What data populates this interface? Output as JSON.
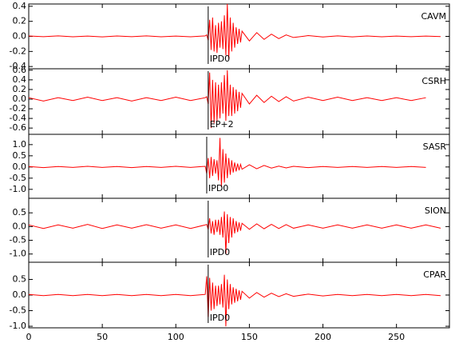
{
  "chart_data": [
    {
      "type": "line",
      "title": "CAVM",
      "color": "#ff0000",
      "pick": {
        "x": 122,
        "label": "IPD0"
      },
      "xlim": [
        0,
        286
      ],
      "ylim": [
        -0.43,
        0.43
      ],
      "yticks": [
        -0.4,
        -0.2,
        {
          "value": 0,
          "label": "0.0"
        },
        0.2,
        0.4
      ],
      "x": [
        0,
        10,
        20,
        30,
        40,
        50,
        60,
        70,
        80,
        90,
        100,
        110,
        120,
        121,
        122,
        123,
        124,
        125,
        126,
        127,
        128,
        129,
        130,
        131,
        132,
        133,
        134,
        135,
        136,
        137,
        138,
        139,
        140,
        141,
        142,
        143,
        144,
        145,
        150,
        155,
        160,
        165,
        170,
        175,
        180,
        190,
        200,
        210,
        220,
        230,
        240,
        250,
        260,
        270,
        280
      ],
      "values": [
        0.005,
        -0.004,
        0.006,
        -0.005,
        0.004,
        -0.006,
        0.005,
        -0.004,
        0.006,
        -0.005,
        0.004,
        -0.005,
        0.006,
        0.02,
        -0.05,
        0.22,
        -0.18,
        0.25,
        -0.2,
        0.15,
        -0.22,
        0.18,
        -0.15,
        0.2,
        -0.17,
        0.28,
        -0.25,
        0.43,
        -0.3,
        0.25,
        -0.2,
        0.18,
        -0.15,
        0.12,
        -0.1,
        0.1,
        -0.08,
        0.07,
        -0.06,
        0.05,
        -0.04,
        0.03,
        -0.03,
        0.02,
        -0.015,
        0.01,
        -0.008,
        0.007,
        -0.006,
        0.005,
        -0.005,
        0.004,
        -0.004,
        0.004,
        -0.003
      ]
    },
    {
      "type": "line",
      "title": "CSRH",
      "color": "#ff0000",
      "pick": {
        "x": 122,
        "label": "EP+2"
      },
      "xlim": [
        0,
        286
      ],
      "ylim": [
        -0.73,
        0.63
      ],
      "yticks": [
        -0.6,
        -0.4,
        -0.2,
        {
          "value": 0,
          "label": "0.0"
        },
        0.2,
        0.4,
        0.6
      ],
      "x": [
        0,
        10,
        20,
        30,
        40,
        50,
        60,
        70,
        80,
        90,
        100,
        110,
        120,
        121,
        122,
        123,
        124,
        125,
        126,
        127,
        128,
        129,
        130,
        131,
        132,
        133,
        134,
        135,
        136,
        137,
        138,
        139,
        140,
        141,
        142,
        143,
        144,
        145,
        150,
        155,
        160,
        165,
        170,
        175,
        180,
        190,
        200,
        210,
        220,
        230,
        240,
        250,
        260,
        270
      ],
      "values": [
        0.03,
        -0.04,
        0.03,
        -0.03,
        0.04,
        -0.03,
        0.03,
        -0.04,
        0.03,
        -0.03,
        0.04,
        -0.03,
        0.03,
        0.05,
        -0.1,
        0.55,
        -0.6,
        0.4,
        -0.5,
        0.35,
        -0.45,
        0.3,
        -0.4,
        0.35,
        -0.3,
        0.5,
        -0.45,
        0.6,
        -0.35,
        0.3,
        -0.35,
        0.25,
        -0.3,
        0.2,
        -0.25,
        0.15,
        -0.18,
        0.12,
        -0.1,
        0.08,
        -0.07,
        0.06,
        -0.05,
        0.05,
        -0.04,
        0.04,
        -0.03,
        0.04,
        -0.03,
        0.03,
        -0.03,
        0.03,
        -0.03,
        0.03
      ]
    },
    {
      "type": "line",
      "title": "SASR",
      "color": "#ff0000",
      "pick": {
        "x": 121,
        "label": "IPD0"
      },
      "xlim": [
        0,
        286
      ],
      "ylim": [
        -1.4,
        1.46
      ],
      "yticks": [
        {
          "value": -1,
          "label": "-1.0"
        },
        -0.5,
        {
          "value": 0,
          "label": "0.0"
        },
        0.5,
        {
          "value": 1,
          "label": "1.0"
        }
      ],
      "x": [
        0,
        10,
        20,
        30,
        40,
        50,
        60,
        70,
        80,
        90,
        100,
        110,
        120,
        121,
        122,
        123,
        124,
        125,
        126,
        127,
        128,
        129,
        130,
        131,
        132,
        133,
        134,
        135,
        136,
        137,
        138,
        139,
        140,
        141,
        142,
        143,
        144,
        145,
        150,
        155,
        160,
        165,
        170,
        175,
        180,
        190,
        200,
        210,
        220,
        230,
        240,
        250,
        260,
        270
      ],
      "values": [
        0.02,
        -0.03,
        0.02,
        -0.02,
        0.03,
        -0.02,
        0.02,
        -0.03,
        0.02,
        -0.02,
        0.03,
        -0.02,
        0.03,
        -0.3,
        0.4,
        -0.5,
        0.45,
        -0.4,
        0.35,
        -0.3,
        0.3,
        -0.6,
        1.3,
        -0.9,
        0.8,
        -0.7,
        0.6,
        -0.5,
        0.4,
        -0.35,
        0.3,
        -0.25,
        0.2,
        -0.2,
        0.15,
        -0.15,
        0.12,
        -0.1,
        0.1,
        -0.08,
        0.07,
        -0.05,
        0.04,
        -0.04,
        0.03,
        -0.03,
        0.02,
        -0.02,
        0.02,
        -0.02,
        0.02,
        -0.02,
        0.02,
        -0.02
      ]
    },
    {
      "type": "line",
      "title": "SION",
      "color": "#ff0000",
      "pick": {
        "x": 122,
        "label": "IPD0"
      },
      "xlim": [
        0,
        286
      ],
      "ylim": [
        -1.3,
        1.03
      ],
      "yticks": [
        {
          "value": -1,
          "label": "-1.0"
        },
        -0.5,
        {
          "value": 0,
          "label": "0.0"
        },
        0.5
      ],
      "x": [
        0,
        10,
        20,
        30,
        40,
        50,
        60,
        70,
        80,
        90,
        100,
        110,
        120,
        121,
        122,
        123,
        124,
        125,
        126,
        127,
        128,
        129,
        130,
        131,
        132,
        133,
        134,
        135,
        136,
        137,
        138,
        139,
        140,
        141,
        142,
        143,
        144,
        145,
        150,
        155,
        160,
        165,
        170,
        175,
        180,
        190,
        200,
        210,
        220,
        230,
        240,
        250,
        260,
        270,
        280
      ],
      "values": [
        0.06,
        -0.07,
        0.06,
        -0.06,
        0.08,
        -0.07,
        0.06,
        -0.06,
        0.07,
        -0.06,
        0.06,
        -0.07,
        0.06,
        0.08,
        -0.1,
        0.3,
        -0.25,
        0.2,
        -0.3,
        0.25,
        -0.2,
        0.25,
        -0.3,
        0.35,
        -0.4,
        0.55,
        -1.0,
        0.45,
        -0.6,
        0.35,
        -0.4,
        0.3,
        -0.25,
        0.2,
        -0.2,
        0.15,
        -0.15,
        0.12,
        -0.1,
        0.1,
        -0.08,
        0.08,
        -0.07,
        0.07,
        -0.06,
        0.06,
        -0.06,
        0.06,
        -0.06,
        0.06,
        -0.06,
        0.06,
        -0.06,
        0.06,
        -0.06
      ]
    },
    {
      "type": "line",
      "title": "CPAR",
      "color": "#ff0000",
      "pick": {
        "x": 122,
        "label": "IPD0"
      },
      "xlim": [
        0,
        286
      ],
      "ylim": [
        -1.05,
        1.05
      ],
      "yticks": [
        {
          "value": -1,
          "label": "-1.0"
        },
        -0.5,
        {
          "value": 0,
          "label": "0.0"
        },
        0.5
      ],
      "xticks": [
        0,
        50,
        100,
        150,
        200,
        250
      ],
      "x": [
        0,
        10,
        20,
        30,
        40,
        50,
        60,
        70,
        80,
        90,
        100,
        110,
        120,
        121,
        122,
        123,
        124,
        125,
        126,
        127,
        128,
        129,
        130,
        131,
        132,
        133,
        134,
        135,
        136,
        137,
        138,
        139,
        140,
        141,
        142,
        143,
        144,
        145,
        150,
        155,
        160,
        165,
        170,
        175,
        180,
        190,
        200,
        210,
        220,
        230,
        240,
        250,
        260,
        270,
        280
      ],
      "values": [
        0.02,
        -0.02,
        0.02,
        -0.02,
        0.02,
        -0.02,
        0.02,
        -0.02,
        0.02,
        -0.02,
        0.02,
        -0.02,
        0.02,
        0.6,
        -0.7,
        0.55,
        -0.5,
        0.4,
        -0.45,
        0.3,
        -0.35,
        0.3,
        -0.3,
        0.35,
        -0.4,
        0.65,
        -1.0,
        0.5,
        -0.45,
        0.35,
        -0.3,
        0.25,
        -0.25,
        0.2,
        -0.2,
        0.15,
        -0.15,
        0.12,
        -0.1,
        0.08,
        -0.07,
        0.06,
        -0.05,
        0.04,
        -0.04,
        0.03,
        -0.03,
        0.02,
        -0.02,
        0.02,
        -0.02,
        0.02,
        -0.02,
        0.02,
        -0.02
      ]
    }
  ]
}
